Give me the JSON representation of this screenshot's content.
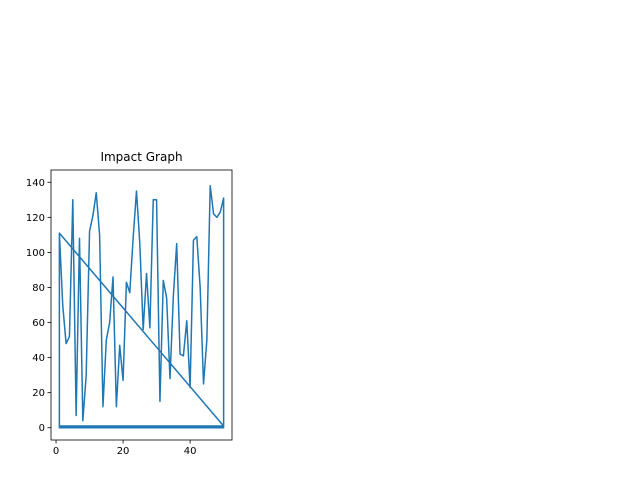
{
  "chart_data": {
    "type": "line",
    "title": "Impact Graph",
    "xlabel": "",
    "ylabel": "",
    "xlim": [
      -1.5,
      52.5
    ],
    "ylim": [
      -7,
      147
    ],
    "xticks": [
      0,
      20,
      40
    ],
    "yticks": [
      0,
      20,
      40,
      60,
      80,
      100,
      120,
      140
    ],
    "grid": false,
    "color": "#1f77b4",
    "series": [
      {
        "x": [
          1,
          2,
          3,
          4,
          5,
          6,
          7,
          8,
          9,
          10,
          11,
          12,
          13,
          14,
          15,
          16,
          17,
          18,
          19,
          20,
          21,
          22,
          23,
          24,
          25,
          26,
          27,
          28,
          29,
          30,
          31,
          32,
          33,
          34,
          35,
          36,
          37,
          38,
          39,
          40,
          41,
          42,
          43,
          44,
          45,
          46,
          47,
          48,
          49,
          50,
          50,
          1,
          1,
          50,
          1,
          50,
          1,
          50
        ],
        "y": [
          111,
          70,
          48,
          52,
          130,
          7,
          108,
          4,
          30,
          112,
          121,
          134,
          110,
          12,
          50,
          60,
          86,
          12,
          47,
          27,
          83,
          77,
          108,
          135,
          105,
          56,
          88,
          57,
          130,
          130,
          15,
          84,
          74,
          28,
          75,
          105,
          42,
          41,
          61,
          23,
          107,
          109,
          80,
          25,
          50,
          138,
          122,
          120,
          123,
          131,
          1,
          111,
          0,
          0,
          0.5,
          0.5,
          1,
          1
        ]
      }
    ]
  }
}
